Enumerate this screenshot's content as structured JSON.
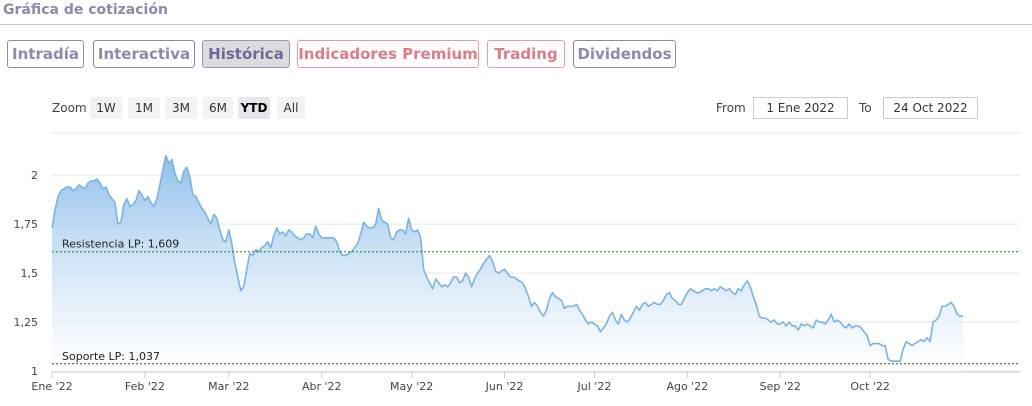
{
  "header": {
    "title": "Gráfica de cotización"
  },
  "tabs": [
    {
      "label": "Intradía",
      "premium": false,
      "active": false
    },
    {
      "label": "Interactiva",
      "premium": false,
      "active": false
    },
    {
      "label": "Histórica",
      "premium": false,
      "active": true
    },
    {
      "label": "Indicadores Premium",
      "premium": true,
      "active": false
    },
    {
      "label": "Trading",
      "premium": true,
      "active": false
    },
    {
      "label": "Dividendos",
      "premium": false,
      "active": false
    }
  ],
  "zoom": {
    "label": "Zoom",
    "buttons": [
      "1W",
      "1M",
      "3M",
      "6M",
      "YTD",
      "All"
    ],
    "selected": "YTD"
  },
  "range": {
    "from_label": "From",
    "from_value": "1 Ene 2022",
    "to_label": "To",
    "to_value": "24 Oct 2022"
  },
  "colors": {
    "line": "#7ab3e3",
    "area_top": "#8bbde9",
    "area_bottom": "#ffffff",
    "reference_line": "#2e7d32"
  },
  "chart_data": {
    "type": "area",
    "y_ticks": [
      "2",
      "1,75",
      "1,5",
      "1,25",
      "1"
    ],
    "y_tick_values": [
      2,
      1.75,
      1.5,
      1.25,
      1
    ],
    "ylim": [
      0.995,
      2.215
    ],
    "x_ticks": [
      "Ene '22",
      "Feb '22",
      "Mar '22",
      "Abr '22",
      "May '22",
      "Jun '22",
      "Jul '22",
      "Ago '22",
      "Sep '22",
      "Oct '22"
    ],
    "x_tick_days": [
      0,
      31,
      59,
      90,
      120,
      151,
      181,
      212,
      243,
      273
    ],
    "xlim": [
      0,
      323
    ],
    "reference_lines": [
      {
        "label": "Resistencia LP: 1,609",
        "value": 1.609
      },
      {
        "label": "Soporte LP: 1,037",
        "value": 1.037
      }
    ],
    "series": [
      {
        "points": [
          [
            0,
            1.73
          ],
          [
            1,
            1.82
          ],
          [
            2,
            1.89
          ],
          [
            3,
            1.92
          ],
          [
            4,
            1.93
          ],
          [
            5,
            1.94
          ],
          [
            6,
            1.94
          ],
          [
            7,
            1.92
          ],
          [
            8,
            1.93
          ],
          [
            9,
            1.95
          ],
          [
            10,
            1.94
          ],
          [
            11,
            1.93
          ],
          [
            12,
            1.96
          ],
          [
            13,
            1.97
          ],
          [
            14,
            1.97
          ],
          [
            15,
            1.98
          ],
          [
            16,
            1.96
          ],
          [
            17,
            1.93
          ],
          [
            18,
            1.94
          ],
          [
            19,
            1.9
          ],
          [
            20,
            1.88
          ],
          [
            21,
            1.86
          ],
          [
            22,
            1.75
          ],
          [
            23,
            1.76
          ],
          [
            24,
            1.85
          ],
          [
            25,
            1.88
          ],
          [
            26,
            1.84
          ],
          [
            27,
            1.85
          ],
          [
            28,
            1.87
          ],
          [
            29,
            1.92
          ],
          [
            30,
            1.9
          ],
          [
            31,
            1.87
          ],
          [
            32,
            1.89
          ],
          [
            33,
            1.86
          ],
          [
            34,
            1.84
          ],
          [
            35,
            1.88
          ],
          [
            36,
            1.95
          ],
          [
            37,
            2.03
          ],
          [
            38,
            2.1
          ],
          [
            39,
            2.06
          ],
          [
            40,
            2.08
          ],
          [
            41,
            2.01
          ],
          [
            42,
            1.97
          ],
          [
            43,
            1.96
          ],
          [
            44,
            2.02
          ],
          [
            45,
            2.04
          ],
          [
            46,
            1.99
          ],
          [
            47,
            1.9
          ],
          [
            48,
            1.89
          ],
          [
            49,
            1.86
          ],
          [
            50,
            1.83
          ],
          [
            51,
            1.81
          ],
          [
            52,
            1.78
          ],
          [
            53,
            1.75
          ],
          [
            54,
            1.8
          ],
          [
            55,
            1.78
          ],
          [
            56,
            1.72
          ],
          [
            57,
            1.67
          ],
          [
            58,
            1.66
          ],
          [
            59,
            1.72
          ],
          [
            60,
            1.65
          ],
          [
            61,
            1.55
          ],
          [
            62,
            1.48
          ],
          [
            63,
            1.41
          ],
          [
            64,
            1.43
          ],
          [
            65,
            1.52
          ],
          [
            66,
            1.6
          ],
          [
            67,
            1.59
          ],
          [
            68,
            1.62
          ],
          [
            69,
            1.61
          ],
          [
            70,
            1.63
          ],
          [
            71,
            1.64
          ],
          [
            72,
            1.66
          ],
          [
            73,
            1.63
          ],
          [
            74,
            1.69
          ],
          [
            75,
            1.73
          ],
          [
            76,
            1.7
          ],
          [
            77,
            1.71
          ],
          [
            78,
            1.69
          ],
          [
            79,
            1.72
          ],
          [
            80,
            1.71
          ],
          [
            81,
            1.69
          ],
          [
            82,
            1.68
          ],
          [
            83,
            1.67
          ],
          [
            84,
            1.68
          ],
          [
            85,
            1.7
          ],
          [
            86,
            1.7
          ],
          [
            87,
            1.68
          ],
          [
            88,
            1.74
          ],
          [
            89,
            1.7
          ],
          [
            90,
            1.68
          ],
          [
            91,
            1.68
          ],
          [
            92,
            1.68
          ],
          [
            93,
            1.68
          ],
          [
            94,
            1.68
          ],
          [
            95,
            1.66
          ],
          [
            96,
            1.61
          ],
          [
            97,
            1.59
          ],
          [
            98,
            1.59
          ],
          [
            99,
            1.6
          ],
          [
            100,
            1.61
          ],
          [
            101,
            1.63
          ],
          [
            102,
            1.65
          ],
          [
            103,
            1.7
          ],
          [
            104,
            1.76
          ],
          [
            105,
            1.74
          ],
          [
            106,
            1.73
          ],
          [
            107,
            1.73
          ],
          [
            108,
            1.75
          ],
          [
            109,
            1.83
          ],
          [
            110,
            1.77
          ],
          [
            111,
            1.76
          ],
          [
            112,
            1.75
          ],
          [
            113,
            1.68
          ],
          [
            114,
            1.67
          ],
          [
            115,
            1.71
          ],
          [
            116,
            1.72
          ],
          [
            117,
            1.72
          ],
          [
            118,
            1.7
          ],
          [
            119,
            1.78
          ],
          [
            120,
            1.72
          ],
          [
            121,
            1.71
          ],
          [
            122,
            1.72
          ],
          [
            123,
            1.68
          ],
          [
            124,
            1.52
          ],
          [
            125,
            1.48
          ],
          [
            126,
            1.45
          ],
          [
            127,
            1.42
          ],
          [
            128,
            1.47
          ],
          [
            129,
            1.45
          ],
          [
            130,
            1.43
          ],
          [
            131,
            1.44
          ],
          [
            132,
            1.43
          ],
          [
            133,
            1.45
          ],
          [
            134,
            1.48
          ],
          [
            135,
            1.48
          ],
          [
            136,
            1.45
          ],
          [
            137,
            1.46
          ],
          [
            138,
            1.5
          ],
          [
            139,
            1.48
          ],
          [
            140,
            1.43
          ],
          [
            141,
            1.47
          ],
          [
            142,
            1.5
          ],
          [
            143,
            1.52
          ],
          [
            144,
            1.55
          ],
          [
            145,
            1.57
          ],
          [
            146,
            1.59
          ],
          [
            147,
            1.56
          ],
          [
            148,
            1.51
          ],
          [
            149,
            1.5
          ],
          [
            150,
            1.51
          ],
          [
            151,
            1.52
          ],
          [
            152,
            1.5
          ],
          [
            153,
            1.48
          ],
          [
            154,
            1.48
          ],
          [
            155,
            1.47
          ],
          [
            156,
            1.46
          ],
          [
            157,
            1.45
          ],
          [
            158,
            1.42
          ],
          [
            159,
            1.38
          ],
          [
            160,
            1.33
          ],
          [
            161,
            1.35
          ],
          [
            162,
            1.33
          ],
          [
            163,
            1.3
          ],
          [
            164,
            1.28
          ],
          [
            165,
            1.31
          ],
          [
            166,
            1.37
          ],
          [
            167,
            1.4
          ],
          [
            168,
            1.38
          ],
          [
            169,
            1.37
          ],
          [
            170,
            1.36
          ],
          [
            171,
            1.32
          ],
          [
            172,
            1.33
          ],
          [
            173,
            1.33
          ],
          [
            174,
            1.33
          ],
          [
            175,
            1.34
          ],
          [
            176,
            1.31
          ],
          [
            177,
            1.29
          ],
          [
            178,
            1.26
          ],
          [
            179,
            1.24
          ],
          [
            180,
            1.25
          ],
          [
            181,
            1.24
          ],
          [
            182,
            1.23
          ],
          [
            183,
            1.2
          ],
          [
            184,
            1.22
          ],
          [
            185,
            1.24
          ],
          [
            186,
            1.28
          ],
          [
            187,
            1.3
          ],
          [
            188,
            1.26
          ],
          [
            189,
            1.24
          ],
          [
            190,
            1.29
          ],
          [
            191,
            1.26
          ],
          [
            192,
            1.25
          ],
          [
            193,
            1.27
          ],
          [
            194,
            1.3
          ],
          [
            195,
            1.33
          ],
          [
            196,
            1.31
          ],
          [
            197,
            1.34
          ],
          [
            198,
            1.35
          ],
          [
            199,
            1.33
          ],
          [
            200,
            1.34
          ],
          [
            201,
            1.35
          ],
          [
            202,
            1.34
          ],
          [
            203,
            1.34
          ],
          [
            204,
            1.36
          ],
          [
            205,
            1.39
          ],
          [
            206,
            1.4
          ],
          [
            207,
            1.37
          ],
          [
            208,
            1.36
          ],
          [
            209,
            1.34
          ],
          [
            210,
            1.34
          ],
          [
            211,
            1.37
          ],
          [
            212,
            1.4
          ],
          [
            213,
            1.42
          ],
          [
            214,
            1.41
          ],
          [
            215,
            1.4
          ],
          [
            216,
            1.4
          ],
          [
            217,
            1.41
          ],
          [
            218,
            1.42
          ],
          [
            219,
            1.42
          ],
          [
            220,
            1.41
          ],
          [
            221,
            1.42
          ],
          [
            222,
            1.41
          ],
          [
            223,
            1.43
          ],
          [
            224,
            1.42
          ],
          [
            225,
            1.41
          ],
          [
            226,
            1.42
          ],
          [
            227,
            1.4
          ],
          [
            228,
            1.39
          ],
          [
            229,
            1.42
          ],
          [
            230,
            1.41
          ],
          [
            231,
            1.44
          ],
          [
            232,
            1.46
          ],
          [
            233,
            1.43
          ],
          [
            234,
            1.38
          ],
          [
            235,
            1.34
          ],
          [
            236,
            1.28
          ],
          [
            237,
            1.27
          ],
          [
            238,
            1.27
          ],
          [
            239,
            1.26
          ],
          [
            240,
            1.25
          ],
          [
            241,
            1.26
          ],
          [
            242,
            1.24
          ],
          [
            243,
            1.24
          ],
          [
            244,
            1.25
          ],
          [
            245,
            1.23
          ],
          [
            246,
            1.25
          ],
          [
            247,
            1.23
          ],
          [
            248,
            1.23
          ],
          [
            249,
            1.21
          ],
          [
            250,
            1.24
          ],
          [
            251,
            1.23
          ],
          [
            252,
            1.24
          ],
          [
            253,
            1.23
          ],
          [
            254,
            1.22
          ],
          [
            255,
            1.26
          ],
          [
            256,
            1.25
          ],
          [
            257,
            1.25
          ],
          [
            258,
            1.24
          ],
          [
            259,
            1.26
          ],
          [
            260,
            1.29
          ],
          [
            261,
            1.25
          ],
          [
            262,
            1.26
          ],
          [
            263,
            1.25
          ],
          [
            264,
            1.23
          ],
          [
            265,
            1.22
          ],
          [
            266,
            1.24
          ],
          [
            267,
            1.22
          ],
          [
            268,
            1.23
          ],
          [
            269,
            1.23
          ],
          [
            270,
            1.22
          ],
          [
            271,
            1.2
          ],
          [
            272,
            1.18
          ],
          [
            273,
            1.13
          ],
          [
            274,
            1.14
          ],
          [
            275,
            1.14
          ],
          [
            276,
            1.14
          ],
          [
            277,
            1.13
          ],
          [
            278,
            1.13
          ],
          [
            279,
            1.06
          ],
          [
            280,
            1.05
          ],
          [
            281,
            1.05
          ],
          [
            282,
            1.05
          ],
          [
            283,
            1.05
          ],
          [
            284,
            1.11
          ],
          [
            285,
            1.15
          ],
          [
            286,
            1.14
          ],
          [
            287,
            1.13
          ],
          [
            288,
            1.14
          ],
          [
            289,
            1.15
          ],
          [
            290,
            1.16
          ],
          [
            291,
            1.15
          ],
          [
            292,
            1.17
          ],
          [
            293,
            1.15
          ],
          [
            294,
            1.25
          ],
          [
            295,
            1.26
          ],
          [
            296,
            1.28
          ],
          [
            297,
            1.33
          ],
          [
            298,
            1.33
          ],
          [
            299,
            1.34
          ],
          [
            300,
            1.35
          ],
          [
            301,
            1.33
          ],
          [
            302,
            1.29
          ],
          [
            303,
            1.28
          ],
          [
            304,
            1.28
          ]
        ]
      }
    ]
  }
}
